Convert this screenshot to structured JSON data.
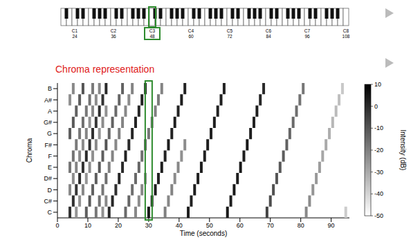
{
  "keyboard": {
    "range": [
      21,
      108
    ],
    "labels": [
      {
        "name": "C1",
        "midi": 24
      },
      {
        "name": "C2",
        "midi": 36
      },
      {
        "name": "C3",
        "midi": 48
      },
      {
        "name": "C4",
        "midi": 60
      },
      {
        "name": "C5",
        "midi": 72
      },
      {
        "name": "C6",
        "midi": 84
      },
      {
        "name": "C7",
        "midi": 96
      },
      {
        "name": "C8",
        "midi": 108
      }
    ],
    "highlight_midi": 48
  },
  "chart_data": {
    "type": "heatmap",
    "title": "Chroma representation",
    "x_label": "Time (seconds)",
    "y_label": "Chroma",
    "xlim": [
      0,
      96
    ],
    "xticks": [
      0,
      10,
      20,
      30,
      40,
      50,
      60,
      70,
      80,
      90
    ],
    "ylim": [
      -0.5,
      11.5
    ],
    "yticks": [
      {
        "value": 0,
        "label": "C"
      },
      {
        "value": 1,
        "label": "C#"
      },
      {
        "value": 2,
        "label": "D"
      },
      {
        "value": 3,
        "label": "D#"
      },
      {
        "value": 4,
        "label": "E"
      },
      {
        "value": 5,
        "label": "F"
      },
      {
        "value": 6,
        "label": "F#"
      },
      {
        "value": 7,
        "label": "G"
      },
      {
        "value": 8,
        "label": "G#"
      },
      {
        "value": 9,
        "label": "A"
      },
      {
        "value": 10,
        "label": "A#"
      },
      {
        "value": 11,
        "label": "B"
      }
    ],
    "colorbar": {
      "label": "Intensity (dB)",
      "range": [
        -50,
        10
      ],
      "ticks": [
        10,
        0,
        -10,
        -20,
        -30,
        -40,
        -50
      ]
    },
    "highlight": {
      "time": 30
    },
    "cells": [
      [
        4.1,
        0,
        -2
      ],
      [
        4.1,
        7,
        -12
      ],
      [
        4.1,
        4,
        -18
      ],
      [
        4.1,
        2,
        -22
      ],
      [
        4.1,
        10,
        -24
      ],
      [
        5.2,
        1,
        -1
      ],
      [
        5.2,
        8,
        -11
      ],
      [
        5.2,
        5,
        -17
      ],
      [
        5.2,
        3,
        -23
      ],
      [
        5.2,
        11,
        -22
      ],
      [
        6.2,
        2,
        -3
      ],
      [
        6.2,
        9,
        -13
      ],
      [
        6.2,
        6,
        -19
      ],
      [
        6.2,
        4,
        -21
      ],
      [
        6.2,
        0,
        -25
      ],
      [
        7.3,
        3,
        -1
      ],
      [
        7.3,
        10,
        -12
      ],
      [
        7.3,
        7,
        -18
      ],
      [
        7.3,
        5,
        -22
      ],
      [
        7.3,
        1,
        -24
      ],
      [
        8.4,
        4,
        -2
      ],
      [
        8.4,
        11,
        -10
      ],
      [
        8.4,
        8,
        -16
      ],
      [
        8.4,
        6,
        -23
      ],
      [
        8.4,
        2,
        -22
      ],
      [
        9.5,
        5,
        0
      ],
      [
        9.5,
        0,
        -12
      ],
      [
        9.5,
        9,
        -18
      ],
      [
        9.5,
        7,
        -21
      ],
      [
        9.5,
        3,
        -25
      ],
      [
        10.6,
        6,
        -2
      ],
      [
        10.6,
        1,
        -11
      ],
      [
        10.6,
        10,
        -17
      ],
      [
        10.6,
        8,
        -24
      ],
      [
        10.6,
        4,
        -23
      ],
      [
        11.6,
        7,
        -1
      ],
      [
        11.6,
        2,
        -13
      ],
      [
        11.6,
        11,
        -19
      ],
      [
        11.6,
        9,
        -22
      ],
      [
        11.6,
        5,
        -24
      ],
      [
        12.7,
        8,
        -3
      ],
      [
        12.7,
        3,
        -12
      ],
      [
        12.7,
        0,
        -18
      ],
      [
        12.7,
        10,
        -23
      ],
      [
        12.7,
        6,
        -22
      ],
      [
        13.8,
        9,
        -1
      ],
      [
        13.8,
        4,
        -11
      ],
      [
        13.8,
        1,
        -17
      ],
      [
        13.8,
        11,
        -22
      ],
      [
        13.8,
        7,
        -25
      ],
      [
        14.9,
        10,
        -2
      ],
      [
        14.9,
        5,
        -12
      ],
      [
        14.9,
        2,
        -18
      ],
      [
        14.9,
        0,
        -24
      ],
      [
        14.9,
        8,
        -23
      ],
      [
        16.0,
        11,
        0
      ],
      [
        16.0,
        6,
        -10
      ],
      [
        16.0,
        3,
        -16
      ],
      [
        16.0,
        1,
        -22
      ],
      [
        16.0,
        9,
        -24
      ],
      [
        17.0,
        0,
        0
      ],
      [
        17.0,
        7,
        -14
      ],
      [
        17.0,
        4,
        -20
      ],
      [
        18.1,
        1,
        1
      ],
      [
        18.1,
        8,
        -13
      ],
      [
        18.1,
        5,
        -21
      ],
      [
        19.2,
        2,
        -1
      ],
      [
        19.2,
        9,
        -15
      ],
      [
        19.2,
        6,
        -22
      ],
      [
        20.3,
        3,
        1
      ],
      [
        20.3,
        10,
        -14
      ],
      [
        20.3,
        7,
        -20
      ],
      [
        21.4,
        4,
        0
      ],
      [
        21.4,
        11,
        -13
      ],
      [
        21.4,
        8,
        -21
      ],
      [
        22.4,
        5,
        2
      ],
      [
        22.4,
        0,
        -15
      ],
      [
        22.4,
        9,
        -22
      ],
      [
        23.5,
        6,
        0
      ],
      [
        23.5,
        1,
        -14
      ],
      [
        23.5,
        10,
        -23
      ],
      [
        24.6,
        7,
        1
      ],
      [
        24.6,
        2,
        -16
      ],
      [
        24.6,
        11,
        -21
      ],
      [
        25.7,
        8,
        2
      ],
      [
        25.7,
        3,
        -15
      ],
      [
        25.7,
        0,
        -22
      ],
      [
        26.8,
        9,
        1
      ],
      [
        26.8,
        4,
        -14
      ],
      [
        26.8,
        1,
        -23
      ],
      [
        27.8,
        10,
        2
      ],
      [
        27.8,
        5,
        -16
      ],
      [
        27.8,
        2,
        -22
      ],
      [
        28.9,
        11,
        1
      ],
      [
        28.9,
        6,
        -15
      ],
      [
        28.9,
        3,
        -24
      ],
      [
        30.0,
        0,
        4
      ],
      [
        30.0,
        7,
        -18
      ],
      [
        31.1,
        1,
        2
      ],
      [
        31.1,
        8,
        -19
      ],
      [
        32.2,
        2,
        3
      ],
      [
        32.2,
        9,
        -20
      ],
      [
        33.2,
        3,
        2
      ],
      [
        33.2,
        10,
        -19
      ],
      [
        34.3,
        4,
        3
      ],
      [
        34.3,
        11,
        -21
      ],
      [
        35.4,
        5,
        2
      ],
      [
        35.4,
        0,
        -20
      ],
      [
        36.5,
        6,
        3
      ],
      [
        36.5,
        1,
        -22
      ],
      [
        37.6,
        7,
        2
      ],
      [
        37.6,
        2,
        -21
      ],
      [
        38.6,
        8,
        3
      ],
      [
        38.6,
        3,
        -23
      ],
      [
        39.7,
        9,
        2
      ],
      [
        39.7,
        4,
        -22
      ],
      [
        40.8,
        10,
        3
      ],
      [
        40.8,
        5,
        -24
      ],
      [
        41.9,
        11,
        2
      ],
      [
        41.9,
        6,
        -23
      ],
      [
        43.0,
        0,
        3
      ],
      [
        44.0,
        1,
        2
      ],
      [
        45.1,
        2,
        3
      ],
      [
        46.2,
        3,
        2
      ],
      [
        47.3,
        4,
        3
      ],
      [
        48.4,
        5,
        2
      ],
      [
        49.4,
        6,
        3
      ],
      [
        50.5,
        7,
        2
      ],
      [
        51.6,
        8,
        3
      ],
      [
        52.7,
        9,
        2
      ],
      [
        53.8,
        10,
        3
      ],
      [
        54.8,
        11,
        2
      ],
      [
        55.9,
        0,
        4
      ],
      [
        57.0,
        1,
        3
      ],
      [
        58.1,
        2,
        4
      ],
      [
        59.2,
        3,
        3
      ],
      [
        60.2,
        4,
        4
      ],
      [
        61.3,
        5,
        3
      ],
      [
        62.4,
        6,
        4
      ],
      [
        63.5,
        7,
        3
      ],
      [
        64.6,
        8,
        2
      ],
      [
        65.6,
        9,
        3
      ],
      [
        66.7,
        10,
        1
      ],
      [
        67.8,
        11,
        0
      ],
      [
        68.9,
        0,
        -6
      ],
      [
        70.0,
        1,
        -8
      ],
      [
        71.0,
        2,
        -9
      ],
      [
        72.1,
        3,
        -10
      ],
      [
        73.2,
        4,
        -11
      ],
      [
        74.3,
        5,
        -12
      ],
      [
        75.4,
        6,
        -13
      ],
      [
        76.4,
        7,
        -14
      ],
      [
        77.5,
        8,
        -15
      ],
      [
        78.6,
        9,
        -16
      ],
      [
        79.7,
        10,
        -17
      ],
      [
        80.8,
        11,
        -18
      ],
      [
        81.8,
        0,
        -22
      ],
      [
        82.9,
        1,
        -23
      ],
      [
        84.0,
        2,
        -25
      ],
      [
        85.1,
        3,
        -26
      ],
      [
        86.2,
        4,
        -27
      ],
      [
        87.2,
        5,
        -29
      ],
      [
        88.3,
        6,
        -30
      ],
      [
        89.4,
        7,
        -31
      ],
      [
        90.5,
        8,
        -33
      ],
      [
        91.6,
        9,
        -34
      ],
      [
        92.6,
        10,
        -35
      ],
      [
        93.7,
        11,
        -37
      ],
      [
        94.8,
        0,
        -38
      ]
    ]
  }
}
